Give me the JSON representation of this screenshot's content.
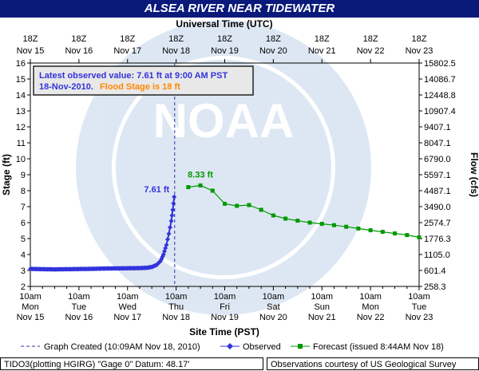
{
  "title": "ALSEA RIVER NEAR TIDEWATER",
  "top_axis_label": "Universal Time (UTC)",
  "bottom_axis_label": "Site Time (PST)",
  "left_axis_label": "Stage (ft)",
  "right_axis_label": "Flow (cfs)",
  "info_box": {
    "line1": "Latest observed value: 7.61 ft at 9:00 AM PST",
    "line2_date": "18-Nov-2010.",
    "line2_flood": "Flood Stage is 18 ft"
  },
  "legend": {
    "graph_created": "Graph Created (10:09AM Nov 18, 2010)",
    "observed": "Observed",
    "forecast": "Forecast (issued 8:44AM Nov 18)"
  },
  "footer_left": "TIDO3(plotting HGIRG) \"Gage 0\" Datum: 48.17'",
  "footer_right": "Observations courtesy of US Geological Survey",
  "watermark": "NOAA",
  "colors": {
    "title_bg": "#0a1a7a",
    "observed": "#3333dd",
    "forecast": "#009900",
    "flood_text": "#ff8800",
    "graph_created_line": "#3333aa"
  },
  "chart_data": {
    "type": "line",
    "title": "ALSEA RIVER NEAR TIDEWATER",
    "xlabel": "Site Time (PST)",
    "ylabel": "Stage (ft)",
    "y2label": "Flow (cfs)",
    "ylim": [
      2,
      16
    ],
    "xlim": [
      "Nov 15 10am",
      "Nov 23 10am"
    ],
    "grid": false,
    "y_ticks": [
      2,
      3,
      4,
      5,
      6,
      7,
      8,
      9,
      10,
      11,
      12,
      13,
      14,
      15,
      16
    ],
    "y2_ticks": [
      "258.3",
      "601.4",
      "1105.0",
      "1776.3",
      "2574.7",
      "3490.0",
      "4487.1",
      "5597.1",
      "6790.0",
      "8047.1",
      "9407.1",
      "10907.4",
      "12448.8",
      "14086.7",
      "15802.5"
    ],
    "bottom_ticks": [
      {
        "time": "10am",
        "day": "Mon",
        "date": "Nov 15"
      },
      {
        "time": "10am",
        "day": "Tue",
        "date": "Nov 16"
      },
      {
        "time": "10am",
        "day": "Wed",
        "date": "Nov 17"
      },
      {
        "time": "10am",
        "day": "Thu",
        "date": "Nov 18"
      },
      {
        "time": "10am",
        "day": "Fri",
        "date": "Nov 19"
      },
      {
        "time": "10am",
        "day": "Sat",
        "date": "Nov 20"
      },
      {
        "time": "10am",
        "day": "Sun",
        "date": "Nov 21"
      },
      {
        "time": "10am",
        "day": "Mon",
        "date": "Nov 22"
      },
      {
        "time": "10am",
        "day": "Tue",
        "date": "Nov 23"
      }
    ],
    "top_ticks": [
      {
        "time": "18Z",
        "date": "Nov 15"
      },
      {
        "time": "18Z",
        "date": "Nov 16"
      },
      {
        "time": "18Z",
        "date": "Nov 17"
      },
      {
        "time": "18Z",
        "date": "Nov 18"
      },
      {
        "time": "18Z",
        "date": "Nov 19"
      },
      {
        "time": "18Z",
        "date": "Nov 20"
      },
      {
        "time": "18Z",
        "date": "Nov 21"
      },
      {
        "time": "18Z",
        "date": "Nov 22"
      },
      {
        "time": "18Z",
        "date": "Nov 23"
      }
    ],
    "graph_created_day": 2.97,
    "observed_label": "7.61 ft",
    "observed_peak": {
      "day": 2.96,
      "value": 7.61
    },
    "forecast_label": "8.33 ft",
    "forecast_peak": {
      "day": 3.5,
      "value": 8.33
    },
    "series": [
      {
        "name": "Observed",
        "points": [
          [
            0.0,
            3.1
          ],
          [
            0.25,
            3.08
          ],
          [
            0.5,
            3.07
          ],
          [
            0.75,
            3.08
          ],
          [
            1.0,
            3.09
          ],
          [
            1.25,
            3.1
          ],
          [
            1.5,
            3.12
          ],
          [
            1.75,
            3.13
          ],
          [
            2.0,
            3.14
          ],
          [
            2.25,
            3.15
          ],
          [
            2.4,
            3.17
          ],
          [
            2.5,
            3.22
          ],
          [
            2.6,
            3.35
          ],
          [
            2.68,
            3.6
          ],
          [
            2.74,
            4.0
          ],
          [
            2.8,
            4.6
          ],
          [
            2.85,
            5.3
          ],
          [
            2.9,
            6.1
          ],
          [
            2.93,
            6.8
          ],
          [
            2.96,
            7.61
          ]
        ]
      },
      {
        "name": "Forecast",
        "points": [
          [
            3.25,
            8.22
          ],
          [
            3.5,
            8.33
          ],
          [
            3.75,
            8.0
          ],
          [
            4.0,
            7.18
          ],
          [
            4.25,
            7.05
          ],
          [
            4.5,
            7.1
          ],
          [
            4.75,
            6.8
          ],
          [
            5.0,
            6.45
          ],
          [
            5.25,
            6.25
          ],
          [
            5.5,
            6.12
          ],
          [
            5.75,
            6.0
          ],
          [
            6.0,
            5.92
          ],
          [
            6.25,
            5.84
          ],
          [
            6.5,
            5.74
          ],
          [
            6.75,
            5.63
          ],
          [
            7.0,
            5.52
          ],
          [
            7.25,
            5.42
          ],
          [
            7.5,
            5.32
          ],
          [
            7.75,
            5.22
          ],
          [
            8.0,
            5.08
          ]
        ]
      }
    ]
  }
}
